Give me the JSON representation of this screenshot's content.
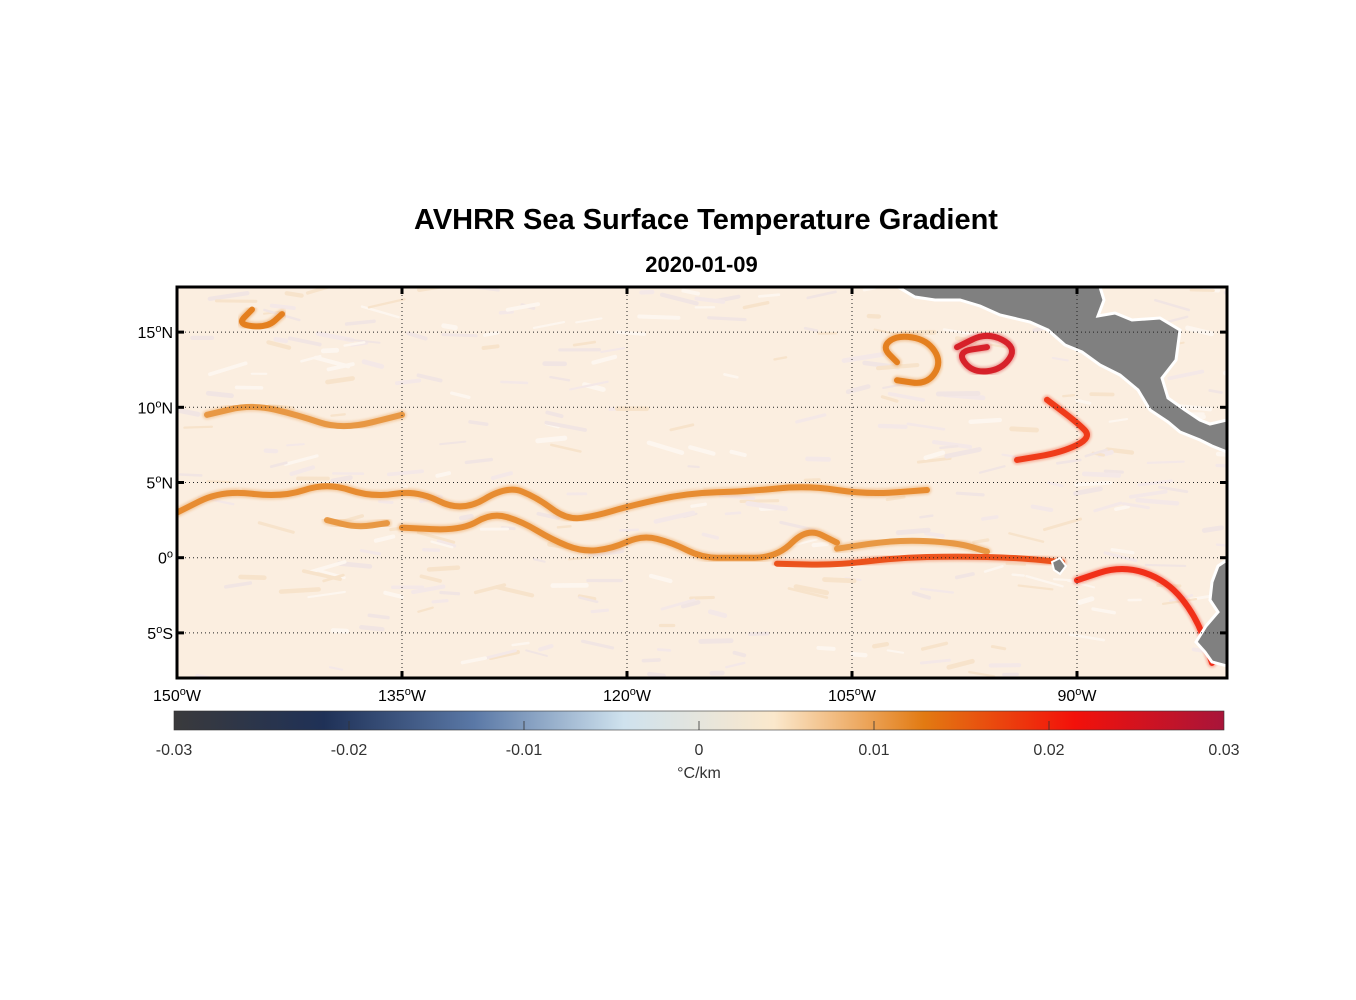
{
  "title": "AVHRR Sea Surface Temperature Gradient",
  "subtitle": "2020-01-09",
  "map": {
    "lon_range": [
      -150,
      -80
    ],
    "lat_range": [
      -8,
      18
    ],
    "lat_ticks": [
      {
        "value": 15,
        "num": "15",
        "sup": "o",
        "hemi": "N"
      },
      {
        "value": 10,
        "num": "10",
        "sup": "o",
        "hemi": "N"
      },
      {
        "value": 5,
        "num": "5",
        "sup": "o",
        "hemi": "N"
      },
      {
        "value": 0,
        "num": "0",
        "sup": "o",
        "hemi": ""
      },
      {
        "value": -5,
        "num": "5",
        "sup": "o",
        "hemi": "S"
      }
    ],
    "lon_ticks": [
      {
        "value": -150,
        "num": "150",
        "sup": "o",
        "hemi": "W"
      },
      {
        "value": -135,
        "num": "135",
        "sup": "o",
        "hemi": "W"
      },
      {
        "value": -120,
        "num": "120",
        "sup": "o",
        "hemi": "W"
      },
      {
        "value": -105,
        "num": "105",
        "sup": "o",
        "hemi": "W"
      },
      {
        "value": -90,
        "num": "90",
        "sup": "o",
        "hemi": "W"
      }
    ],
    "grid": "dotted",
    "ocean_color": "#fbeee0",
    "land_color": "#808080",
    "front_colors": [
      "#e87e1c",
      "#d4501a",
      "#c8102e"
    ]
  },
  "colorbar": {
    "unit": "°C/km",
    "range": [
      -0.03,
      0.03
    ],
    "tick_labels": [
      "-0.03",
      "-0.02",
      "-0.01",
      "0",
      "0.01",
      "0.02",
      "0.03"
    ],
    "stops": [
      "#3a3a3c",
      "#1f3157",
      "#5a78a6",
      "#cfe2ee",
      "#fbe8cc",
      "#e27a12",
      "#f3110a",
      "#a8153a"
    ]
  },
  "chart_data": {
    "type": "heatmap",
    "title": "AVHRR Sea Surface Temperature Gradient",
    "subtitle": "2020-01-09",
    "x_range": [
      -150,
      -80
    ],
    "y_range": [
      -8,
      18
    ],
    "color_range": [
      -0.03,
      0.03
    ],
    "color_unit": "°C/km",
    "fronts": [
      {
        "values": [
          [
            -150,
            3
          ],
          [
            -147,
            4.5
          ],
          [
            -143,
            4
          ],
          [
            -140,
            5
          ],
          [
            -137,
            4
          ],
          [
            -134,
            4.5
          ],
          [
            -131,
            3
          ],
          [
            -128,
            4.8
          ],
          [
            -126,
            4
          ],
          [
            -124,
            2.5
          ],
          [
            -122,
            2.8
          ],
          [
            -120,
            3.4
          ],
          [
            -116,
            4.3
          ],
          [
            -112,
            4.4
          ],
          [
            -108,
            4.8
          ],
          [
            -104,
            4.2
          ],
          [
            -100,
            4.5
          ]
        ],
        "gradient": 0.012
      },
      {
        "values": [
          [
            -140,
            2.5
          ],
          [
            -138,
            2
          ],
          [
            -136,
            2.3
          ]
        ],
        "gradient": 0.011
      },
      {
        "values": [
          [
            -135,
            2
          ],
          [
            -131,
            1.8
          ],
          [
            -129,
            3
          ],
          [
            -127,
            2.4
          ],
          [
            -125,
            1.2
          ],
          [
            -123,
            0.4
          ],
          [
            -121,
            0.6
          ],
          [
            -119,
            1.5
          ],
          [
            -117,
            1
          ],
          [
            -115,
            0
          ],
          [
            -113,
            0
          ],
          [
            -110,
            0
          ],
          [
            -108,
            2
          ],
          [
            -106,
            1
          ]
        ],
        "gradient": 0.012
      },
      {
        "values": [
          [
            -106,
            0.6
          ],
          [
            -102,
            1.2
          ],
          [
            -98,
            1
          ],
          [
            -96,
            0.4
          ]
        ],
        "gradient": 0.011
      },
      {
        "values": [
          [
            -110,
            -0.4
          ],
          [
            -106,
            -0.5
          ],
          [
            -102,
            0
          ],
          [
            -98,
            0.1
          ],
          [
            -94,
            0
          ],
          [
            -91,
            -0.3
          ]
        ],
        "gradient": 0.017
      },
      {
        "values": [
          [
            -90,
            -1.5
          ],
          [
            -87,
            -0.5
          ],
          [
            -84,
            -1.5
          ],
          [
            -82,
            -4
          ],
          [
            -81,
            -7
          ]
        ],
        "gradient": 0.02
      },
      {
        "values": [
          [
            -98,
            14
          ],
          [
            -96,
            15
          ],
          [
            -94,
            14
          ],
          [
            -95,
            12.5
          ],
          [
            -97,
            12.3
          ],
          [
            -98,
            13.7
          ],
          [
            -96,
            14
          ]
        ],
        "gradient": 0.025
      },
      {
        "values": [
          [
            -102,
            13
          ],
          [
            -103,
            14
          ],
          [
            -102,
            14.8
          ],
          [
            -100,
            14.5
          ],
          [
            -99,
            13
          ],
          [
            -100,
            11.5
          ],
          [
            -102,
            11.8
          ]
        ],
        "gradient": 0.013
      },
      {
        "values": [
          [
            -92,
            10.5
          ],
          [
            -90,
            9
          ],
          [
            -89,
            8
          ],
          [
            -91,
            7
          ],
          [
            -94,
            6.5
          ]
        ],
        "gradient": 0.019
      },
      {
        "values": [
          [
            -145,
            16.5
          ],
          [
            -146,
            15.5
          ],
          [
            -144,
            15.3
          ],
          [
            -143,
            16.2
          ]
        ],
        "gradient": 0.013
      },
      {
        "values": [
          [
            -148,
            9.5
          ],
          [
            -145,
            10.2
          ],
          [
            -142,
            9.5
          ],
          [
            -139,
            8.5
          ],
          [
            -135,
            9.5
          ]
        ],
        "gradient": 0.011
      }
    ]
  }
}
